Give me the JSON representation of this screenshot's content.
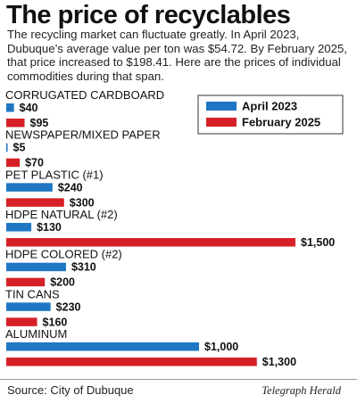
{
  "header": {
    "title": "The price of recyclables",
    "intro": "The recycling market can fluctuate greatly. In April 2023, Dubuque’s average value per ton was $54.72. By February 2025, that price increased to $198.41. Here are the prices of individual commodities during that span."
  },
  "footer": {
    "source": "Source: City of Dubuque",
    "credit": "Telegraph Herald"
  },
  "chart_data": {
    "type": "bar",
    "orientation": "horizontal",
    "value_prefix": "$",
    "legend_position": "top-right",
    "grid": false,
    "xlim": [
      0,
      1500
    ],
    "categories": [
      "CORRUGATED CARDBOARD",
      "NEWSPAPER/MIXED PAPER",
      "PET PLASTIC (#1)",
      "HDPE NATURAL (#2)",
      "HDPE COLORED (#2)",
      "TIN CANS",
      "ALUMINUM"
    ],
    "series": [
      {
        "name": "April 2023",
        "color": "#1f77c4",
        "values": [
          40,
          5,
          240,
          130,
          310,
          230,
          1000
        ],
        "labels": [
          "$40",
          "$5",
          "$240",
          "$130",
          "$310",
          "$230",
          "$1,000"
        ]
      },
      {
        "name": "February 2025",
        "color": "#d62027",
        "values": [
          95,
          70,
          300,
          1500,
          200,
          160,
          1300
        ],
        "labels": [
          "$95",
          "$70",
          "$300",
          "$1,500",
          "$200",
          "$160",
          "$1,300"
        ]
      }
    ]
  }
}
